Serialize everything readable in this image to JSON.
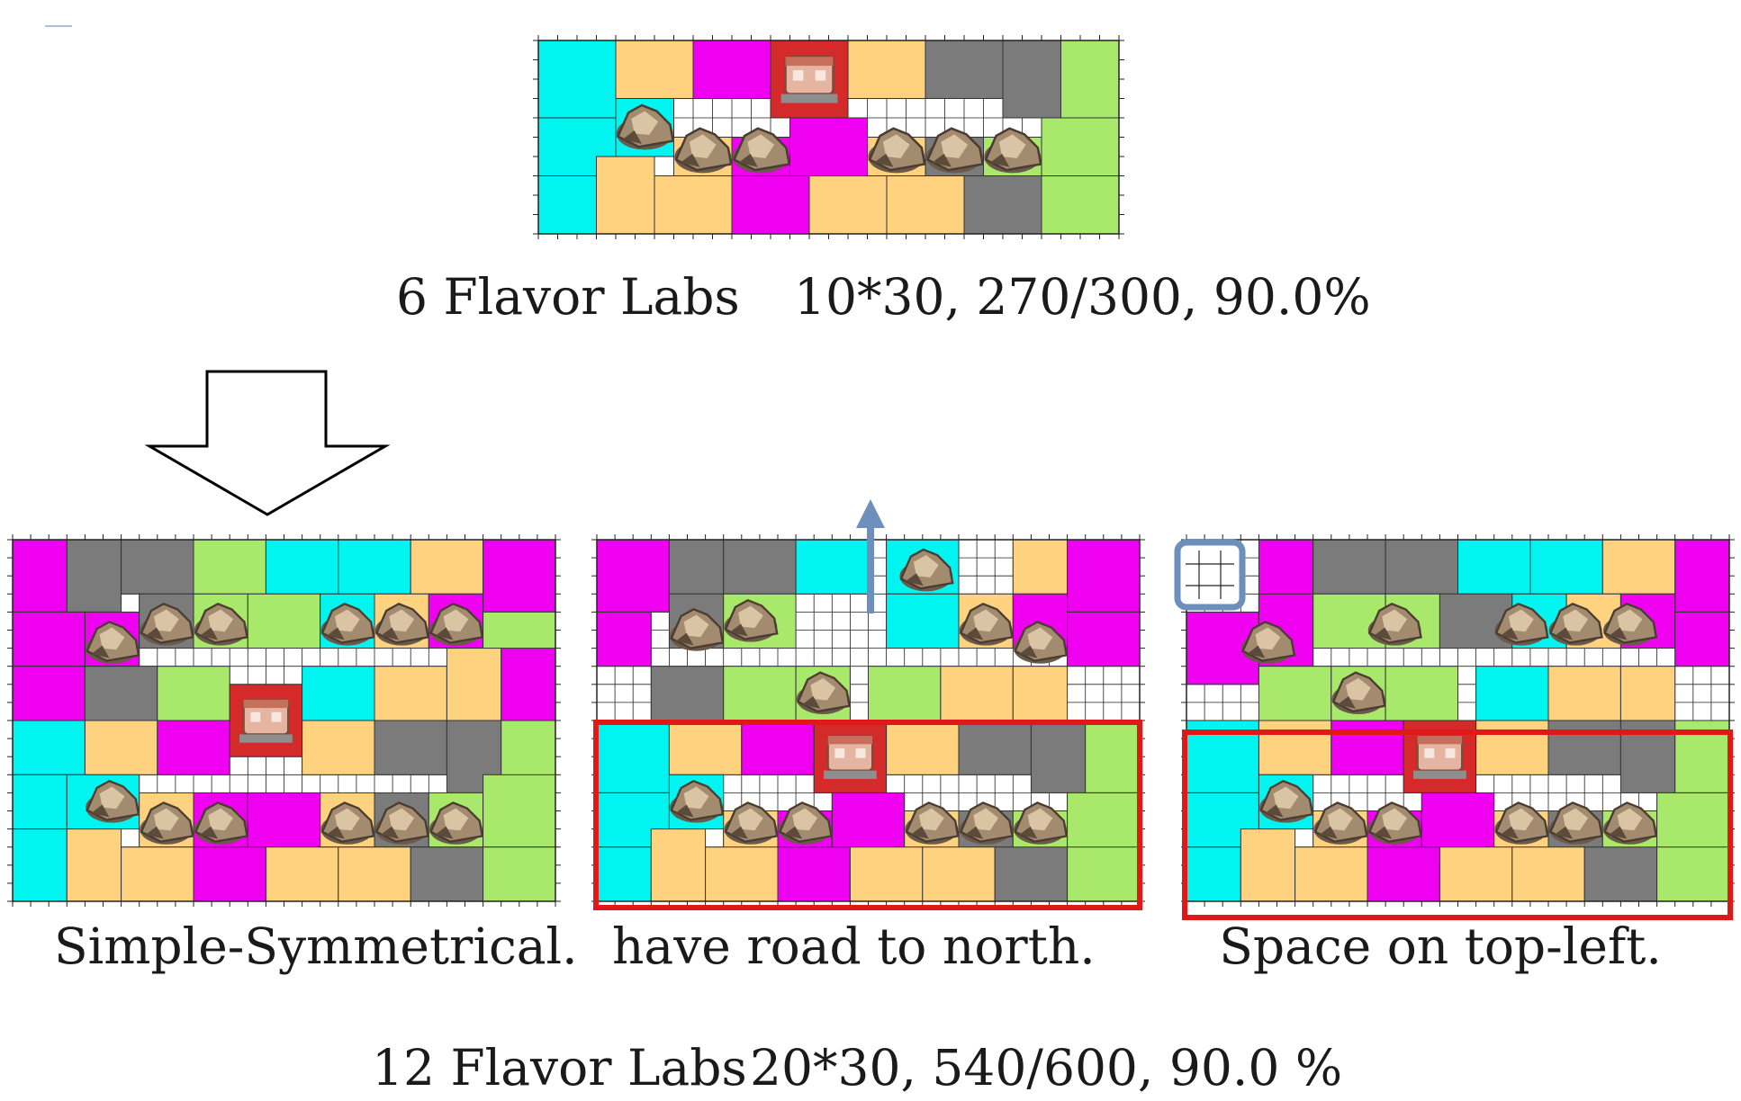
{
  "captions": {
    "top_name": "6 Flavor Labs",
    "top_stats": "10*30, 270/300, 90.0%",
    "layout_a": "Simple-Symmetrical.",
    "layout_b": "have road to north.",
    "layout_c": "Space on top-left.",
    "bottom_name": "12 Flavor Labs",
    "bottom_stats": "20*30, 540/600, 90.0 %"
  },
  "colors": {
    "cyan": "#00f5f0",
    "tan": "#ffd27f",
    "magenta": "#f000f0",
    "gray": "#7b7b7b",
    "green": "#a8e86a",
    "red": "#d42a2a",
    "highlight": "#e01818",
    "arrow": "#6e8fbb"
  },
  "icons": {
    "rock": "rock-resource-icon",
    "lab": "flavor-lab-building-icon",
    "down_arrow": "down-arrow-icon",
    "up_arrow": "north-road-arrow-icon",
    "space_marker": "empty-space-grid-icon"
  }
}
